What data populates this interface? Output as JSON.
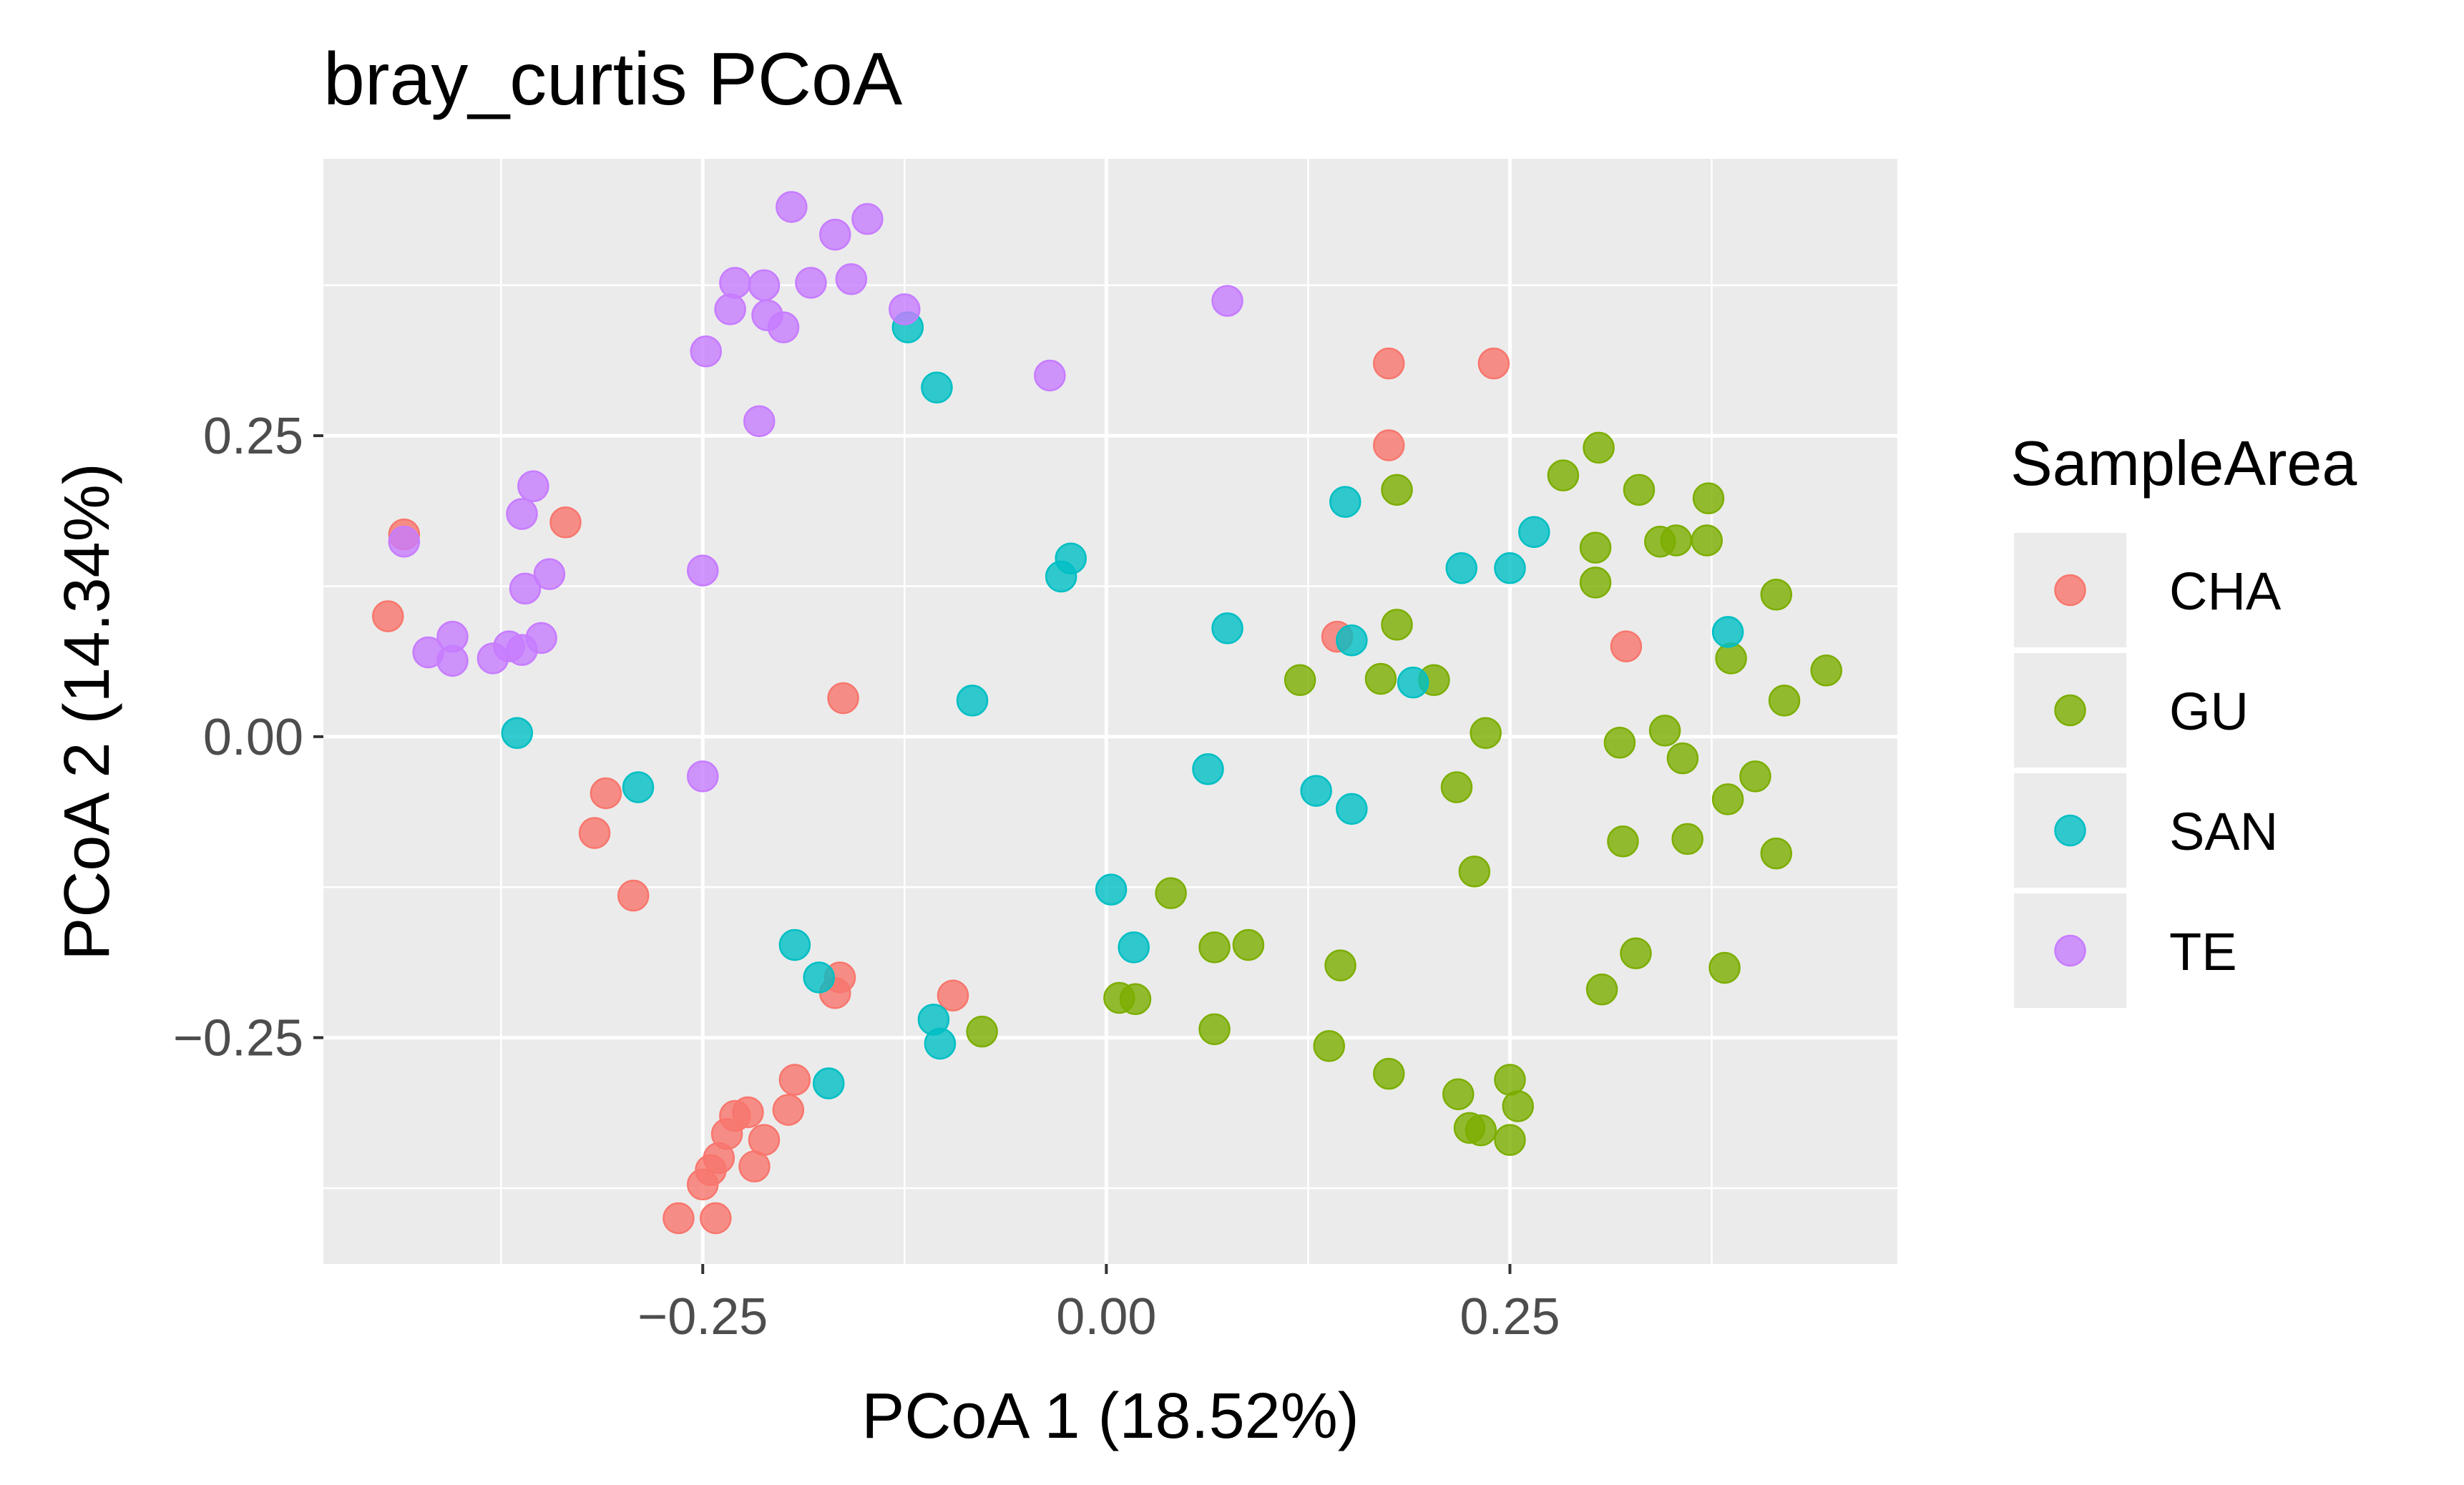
{
  "chart_data": {
    "type": "scatter",
    "title": "bray_curtis PCoA",
    "xlabel": "PCoA 1 (18.52%)",
    "ylabel": "PCoA 2 (14.34%)",
    "xlim": [
      -0.485,
      0.49
    ],
    "ylim": [
      -0.438,
      0.48
    ],
    "xticks": [
      -0.25,
      0.0,
      0.25
    ],
    "xtick_labels": [
      "−0.25",
      "0.00",
      "0.25"
    ],
    "yticks": [
      -0.25,
      0.0,
      0.25
    ],
    "ytick_labels": [
      "−0.25",
      "0.00",
      "0.25"
    ],
    "x_minor": [
      -0.375,
      -0.125,
      0.125,
      0.375
    ],
    "y_minor": [
      -0.375,
      -0.125,
      0.125,
      0.375
    ],
    "grid": true,
    "legend_title": "SampleArea",
    "legend_position": "right",
    "series": [
      {
        "name": "CHA",
        "color": "#F8766D",
        "points": [
          [
            -0.435,
            0.168
          ],
          [
            -0.445,
            0.1
          ],
          [
            -0.335,
            0.178
          ],
          [
            -0.31,
            -0.047
          ],
          [
            -0.317,
            -0.08
          ],
          [
            -0.293,
            -0.132
          ],
          [
            -0.163,
            0.032
          ],
          [
            -0.165,
            -0.2
          ],
          [
            -0.168,
            -0.213
          ],
          [
            -0.095,
            -0.215
          ],
          [
            -0.193,
            -0.285
          ],
          [
            -0.197,
            -0.31
          ],
          [
            -0.222,
            -0.312
          ],
          [
            -0.23,
            -0.315
          ],
          [
            -0.235,
            -0.33
          ],
          [
            -0.212,
            -0.335
          ],
          [
            -0.24,
            -0.35
          ],
          [
            -0.245,
            -0.36
          ],
          [
            -0.25,
            -0.372
          ],
          [
            -0.218,
            -0.357
          ],
          [
            -0.265,
            -0.4
          ],
          [
            -0.242,
            -0.4
          ],
          [
            0.175,
            0.31
          ],
          [
            0.24,
            0.31
          ],
          [
            0.175,
            0.242
          ],
          [
            0.143,
            0.083
          ],
          [
            0.322,
            0.075
          ]
        ]
      },
      {
        "name": "GU",
        "color": "#7CAE00",
        "points": [
          [
            0.305,
            0.24
          ],
          [
            0.283,
            0.217
          ],
          [
            0.33,
            0.205
          ],
          [
            0.373,
            0.198
          ],
          [
            0.18,
            0.205
          ],
          [
            0.303,
            0.157
          ],
          [
            0.343,
            0.162
          ],
          [
            0.353,
            0.163
          ],
          [
            0.372,
            0.163
          ],
          [
            0.303,
            0.128
          ],
          [
            0.415,
            0.118
          ],
          [
            0.18,
            0.093
          ],
          [
            0.387,
            0.065
          ],
          [
            0.446,
            0.055
          ],
          [
            0.12,
            0.047
          ],
          [
            0.17,
            0.048
          ],
          [
            0.203,
            0.047
          ],
          [
            0.42,
            0.03
          ],
          [
            0.235,
            0.003
          ],
          [
            0.318,
            -0.005
          ],
          [
            0.346,
            0.005
          ],
          [
            0.357,
            -0.018
          ],
          [
            0.402,
            -0.033
          ],
          [
            0.217,
            -0.042
          ],
          [
            0.385,
            -0.052
          ],
          [
            0.32,
            -0.087
          ],
          [
            0.36,
            -0.085
          ],
          [
            0.415,
            -0.097
          ],
          [
            0.228,
            -0.112
          ],
          [
            0.04,
            -0.13
          ],
          [
            0.067,
            -0.175
          ],
          [
            0.088,
            -0.173
          ],
          [
            0.145,
            -0.19
          ],
          [
            0.328,
            -0.18
          ],
          [
            0.383,
            -0.192
          ],
          [
            0.307,
            -0.21
          ],
          [
            0.008,
            -0.217
          ],
          [
            0.018,
            -0.218
          ],
          [
            -0.077,
            -0.245
          ],
          [
            0.067,
            -0.243
          ],
          [
            0.138,
            -0.257
          ],
          [
            0.175,
            -0.28
          ],
          [
            0.218,
            -0.297
          ],
          [
            0.25,
            -0.285
          ],
          [
            0.255,
            -0.307
          ],
          [
            0.225,
            -0.325
          ],
          [
            0.232,
            -0.327
          ],
          [
            0.25,
            -0.335
          ]
        ]
      },
      {
        "name": "SAN",
        "color": "#00BFC4",
        "points": [
          [
            -0.123,
            0.34
          ],
          [
            -0.105,
            0.29
          ],
          [
            -0.022,
            0.148
          ],
          [
            -0.028,
            0.133
          ],
          [
            -0.083,
            0.03
          ],
          [
            0.148,
            0.195
          ],
          [
            0.265,
            0.17
          ],
          [
            0.22,
            0.14
          ],
          [
            0.25,
            0.14
          ],
          [
            0.075,
            0.09
          ],
          [
            0.152,
            0.08
          ],
          [
            0.19,
            0.045
          ],
          [
            0.385,
            0.087
          ],
          [
            -0.365,
            0.003
          ],
          [
            -0.29,
            -0.042
          ],
          [
            0.063,
            -0.027
          ],
          [
            0.13,
            -0.045
          ],
          [
            0.152,
            -0.06
          ],
          [
            0.003,
            -0.127
          ],
          [
            0.017,
            -0.175
          ],
          [
            -0.193,
            -0.173
          ],
          [
            -0.178,
            -0.2
          ],
          [
            -0.107,
            -0.235
          ],
          [
            -0.103,
            -0.255
          ],
          [
            -0.172,
            -0.288
          ]
        ]
      },
      {
        "name": "TE",
        "color": "#C77CFF",
        "points": [
          [
            -0.195,
            0.44
          ],
          [
            -0.148,
            0.43
          ],
          [
            -0.168,
            0.417
          ],
          [
            -0.158,
            0.38
          ],
          [
            -0.183,
            0.377
          ],
          [
            -0.23,
            0.377
          ],
          [
            -0.212,
            0.375
          ],
          [
            -0.233,
            0.355
          ],
          [
            -0.21,
            0.35
          ],
          [
            -0.2,
            0.34
          ],
          [
            -0.125,
            0.355
          ],
          [
            0.075,
            0.362
          ],
          [
            -0.248,
            0.32
          ],
          [
            -0.035,
            0.3
          ],
          [
            -0.215,
            0.262
          ],
          [
            -0.355,
            0.208
          ],
          [
            -0.362,
            0.185
          ],
          [
            -0.435,
            0.162
          ],
          [
            -0.25,
            0.138
          ],
          [
            -0.345,
            0.135
          ],
          [
            -0.36,
            0.123
          ],
          [
            -0.405,
            0.083
          ],
          [
            -0.37,
            0.075
          ],
          [
            -0.362,
            0.072
          ],
          [
            -0.35,
            0.082
          ],
          [
            -0.42,
            0.07
          ],
          [
            -0.405,
            0.063
          ],
          [
            -0.38,
            0.065
          ],
          [
            -0.25,
            -0.033
          ]
        ]
      }
    ]
  }
}
